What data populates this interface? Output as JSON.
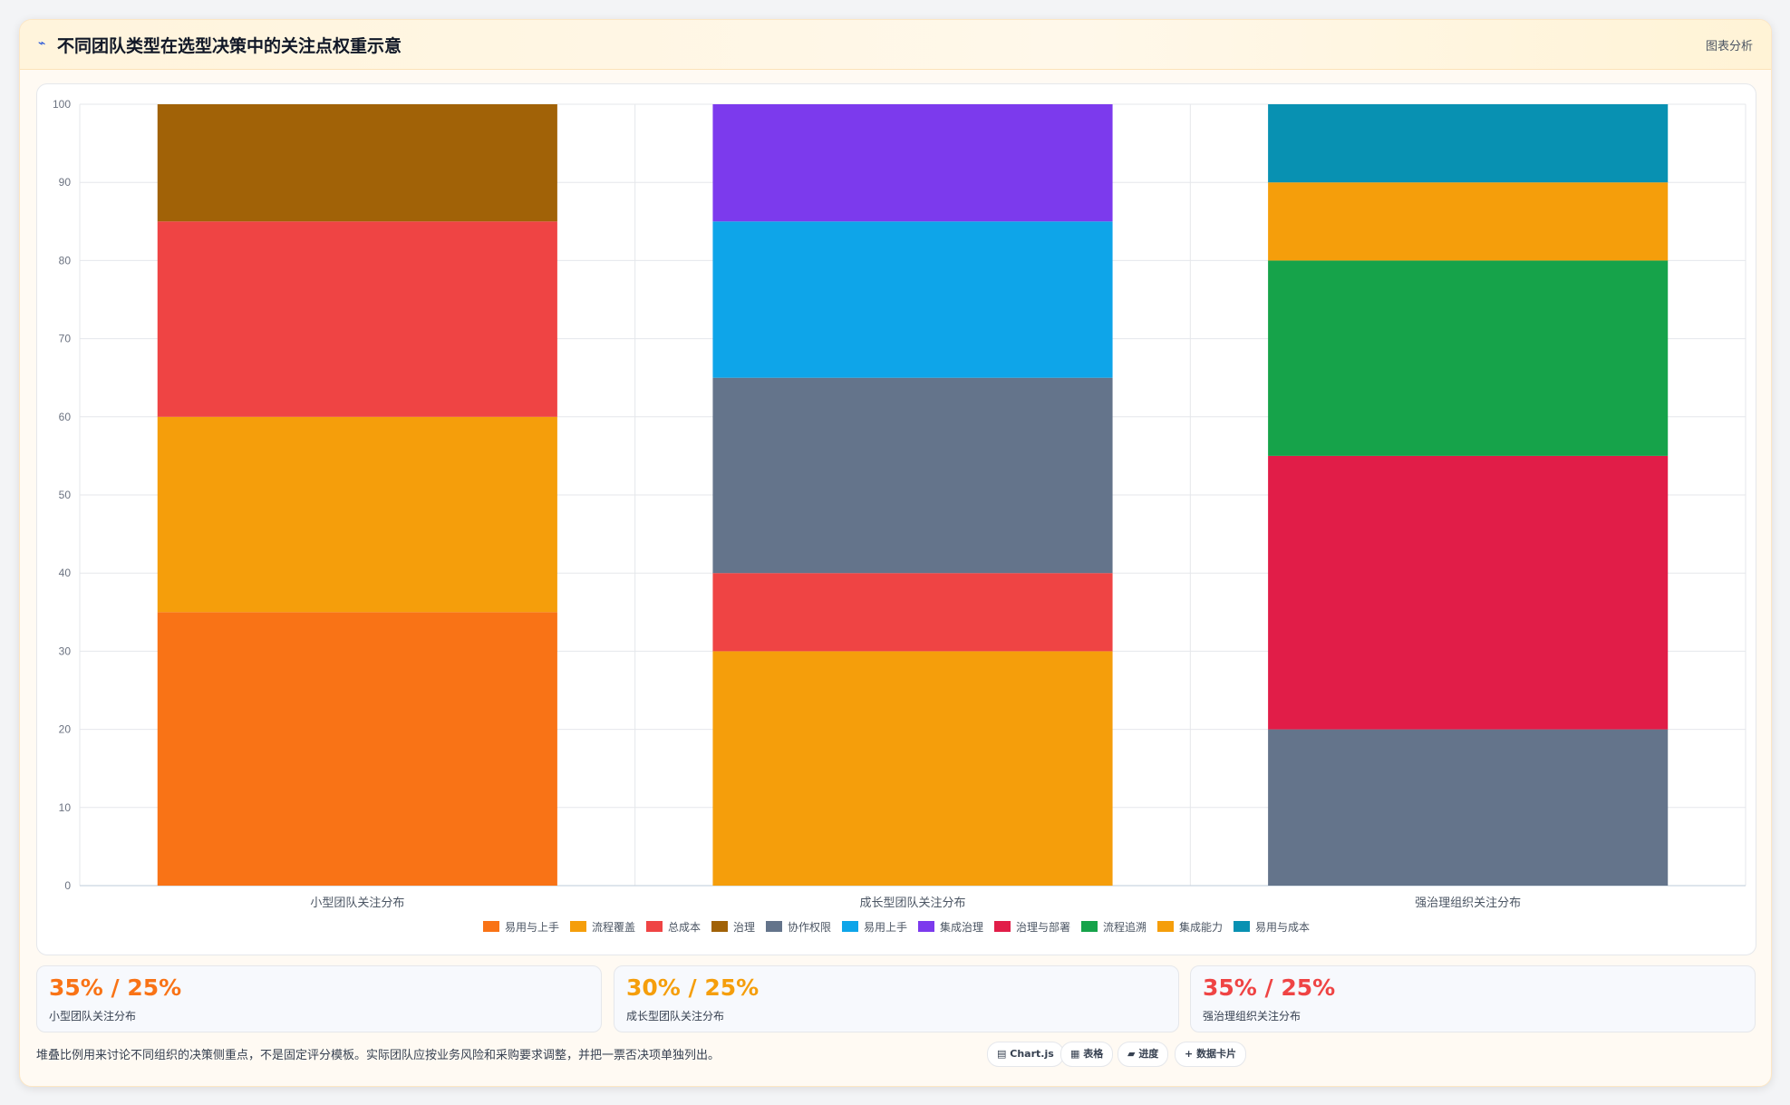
{
  "header": {
    "icon": "line-chart-icon",
    "title": "不同团队类型在选型决策中的关注点权重示意",
    "action_label": "图表分析"
  },
  "chart_data": {
    "type": "bar",
    "stacked": true,
    "categories": [
      "小型团队关注分布",
      "成长型团队关注分布",
      "强治理组织关注分布"
    ],
    "ylim": [
      0,
      100
    ],
    "yticks": [
      0,
      10,
      20,
      30,
      40,
      50,
      60,
      70,
      80,
      90,
      100
    ],
    "grid": true,
    "legend_position": "bottom",
    "series": [
      {
        "name": "易用与上手",
        "color": "#f97316",
        "values": [
          35,
          0,
          0
        ]
      },
      {
        "name": "流程覆盖",
        "color": "#f59e0b",
        "values": [
          25,
          30,
          0
        ]
      },
      {
        "name": "总成本",
        "color": "#ef4444",
        "values": [
          25,
          10,
          0
        ]
      },
      {
        "name": "治理",
        "color": "#a16207",
        "values": [
          15,
          0,
          0
        ]
      },
      {
        "name": "协作权限",
        "color": "#64748b",
        "values": [
          0,
          25,
          20
        ]
      },
      {
        "name": "易用上手",
        "color": "#0ea5e9",
        "values": [
          0,
          20,
          0
        ]
      },
      {
        "name": "集成治理",
        "color": "#7c3aed",
        "values": [
          0,
          15,
          0
        ]
      },
      {
        "name": "治理与部署",
        "color": "#e11d48",
        "values": [
          0,
          0,
          35
        ]
      },
      {
        "name": "流程追溯",
        "color": "#16a34a",
        "values": [
          0,
          0,
          25
        ]
      },
      {
        "name": "集成能力",
        "color": "#f59e0b",
        "values": [
          0,
          0,
          10
        ]
      },
      {
        "name": "易用与成本",
        "color": "#0891b2",
        "values": [
          0,
          0,
          10
        ]
      }
    ]
  },
  "stats": [
    {
      "value": "35% / 25%",
      "label": "小型团队关注分布",
      "color": "#f97316"
    },
    {
      "value": "30% / 25%",
      "label": "成长型团队关注分布",
      "color": "#f59e0b"
    },
    {
      "value": "35% / 25%",
      "label": "强治理组织关注分布",
      "color": "#ef4444"
    }
  ],
  "footnote": "堆叠比例用来讨论不同组织的决策侧重点，不是固定评分模板。实际团队应按业务风险和采购要求调整，并把一票否决项单独列出。",
  "tags": [
    {
      "icon": "chart-icon",
      "glyph": "▤",
      "label": "Chart.js"
    },
    {
      "icon": "table-icon",
      "glyph": "▦",
      "label": "表格"
    },
    {
      "icon": "progress-icon",
      "glyph": "▰",
      "label": "进度"
    },
    {
      "icon": "plus-icon",
      "glyph": "+",
      "label": "数据卡片"
    }
  ]
}
